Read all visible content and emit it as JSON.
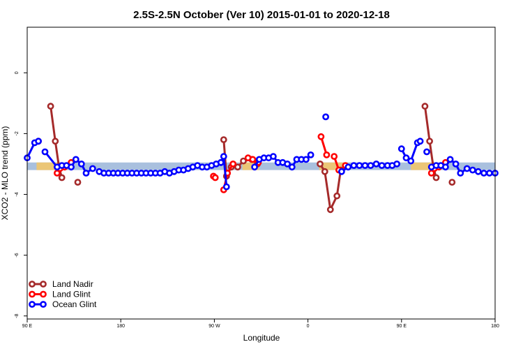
{
  "chart_data": {
    "type": "line",
    "title": "2.5S-2.5N October (Ver 10)   2015-01-01 to 2020-12-18",
    "xlabel": "Longitude",
    "ylabel": "XCO2 - MLO trend (ppm)",
    "xlim": [
      0,
      500
    ],
    "ylim": [
      -8.1,
      1.5
    ],
    "x_ticks": [
      {
        "value": 0,
        "label": "90 E"
      },
      {
        "value": 100,
        "label": "180"
      },
      {
        "value": 200,
        "label": "90 W"
      },
      {
        "value": 300,
        "label": "0"
      },
      {
        "value": 400,
        "label": "90 E"
      },
      {
        "value": 500,
        "label": "180"
      }
    ],
    "y_ticks": [
      {
        "value": 0,
        "label": "0"
      },
      {
        "value": -2,
        "label": "-2"
      },
      {
        "value": -4,
        "label": "-4"
      },
      {
        "value": -6,
        "label": "-6"
      },
      {
        "value": -8,
        "label": "-8"
      }
    ],
    "band": {
      "y_low": -3.2,
      "y_high": -2.95,
      "color": "#a9c0de"
    },
    "land_bands": [
      [
        10,
        35
      ],
      [
        230,
        248
      ],
      [
        312,
        340
      ],
      [
        410,
        435
      ]
    ],
    "land_band_color": "#f2c76a",
    "legend_position": "bottom-left",
    "series": [
      {
        "name": "Land Nadir",
        "color": "#a52a2a",
        "segments": [
          [
            [
              12,
              -2.25
            ]
          ],
          [
            [
              25,
              -1.1
            ],
            [
              30,
              -2.25
            ],
            [
              34,
              -3.1
            ],
            [
              37,
              -3.45
            ]
          ],
          [
            [
              54,
              -3.6
            ]
          ],
          [
            [
              210,
              -2.2
            ],
            [
              213,
              -3.4
            ],
            [
              218,
              -3.1
            ],
            [
              225,
              -3.1
            ],
            [
              231,
              -2.9
            ],
            [
              240,
              -2.85
            ],
            [
              246,
              -3.0
            ]
          ],
          [
            [
              313,
              -3.0
            ],
            [
              318,
              -3.25
            ],
            [
              324,
              -4.5
            ],
            [
              331,
              -4.05
            ],
            [
              335,
              -3.2
            ]
          ],
          [
            [
              425,
              -1.1
            ],
            [
              430,
              -2.25
            ],
            [
              434,
              -3.1
            ],
            [
              437,
              -3.45
            ]
          ],
          [
            [
              454,
              -3.6
            ]
          ]
        ]
      },
      {
        "name": "Land Glint",
        "color": "#ff0000",
        "segments": [
          [
            [
              32,
              -3.3
            ],
            [
              35,
              -3.15
            ],
            [
              40,
              -3.1
            ],
            [
              47,
              -2.95
            ]
          ],
          [
            [
              199,
              -3.4
            ],
            [
              201,
              -3.45
            ]
          ],
          [
            [
              210,
              -3.85
            ],
            [
              214,
              -3.3
            ],
            [
              220,
              -3.0
            ]
          ],
          [
            [
              236,
              -2.8
            ],
            [
              241,
              -2.85
            ],
            [
              247,
              -2.95
            ]
          ],
          [
            [
              314,
              -2.1
            ],
            [
              320,
              -2.7
            ]
          ],
          [
            [
              340,
              -3.05
            ]
          ],
          [
            [
              328,
              -2.75
            ],
            [
              333,
              -3.2
            ]
          ],
          [
            [
              432,
              -3.3
            ],
            [
              435,
              -3.15
            ],
            [
              440,
              -3.1
            ],
            [
              447,
              -2.95
            ]
          ]
        ]
      },
      {
        "name": "Ocean Glint",
        "color": "#0000ff",
        "segments": [
          [
            [
              0,
              -2.8
            ],
            [
              8,
              -2.3
            ],
            [
              12,
              -2.25
            ]
          ],
          [
            [
              19,
              -2.6
            ],
            [
              32,
              -3.1
            ],
            [
              37,
              -3.05
            ],
            [
              42,
              -3.05
            ],
            [
              47,
              -3.1
            ],
            [
              52,
              -2.85
            ],
            [
              58,
              -3.0
            ],
            [
              63,
              -3.3
            ],
            [
              70,
              -3.15
            ]
          ],
          [
            [
              77,
              -3.25
            ],
            [
              82,
              -3.3
            ],
            [
              87,
              -3.3
            ],
            [
              92,
              -3.3
            ],
            [
              97,
              -3.3
            ],
            [
              102,
              -3.3
            ],
            [
              107,
              -3.3
            ],
            [
              112,
              -3.3
            ],
            [
              117,
              -3.3
            ],
            [
              122,
              -3.3
            ],
            [
              127,
              -3.3
            ],
            [
              132,
              -3.3
            ],
            [
              137,
              -3.3
            ],
            [
              142,
              -3.3
            ],
            [
              147,
              -3.25
            ],
            [
              152,
              -3.3
            ],
            [
              157,
              -3.25
            ],
            [
              162,
              -3.2
            ],
            [
              167,
              -3.2
            ],
            [
              172,
              -3.15
            ],
            [
              177,
              -3.1
            ],
            [
              182,
              -3.05
            ],
            [
              187,
              -3.1
            ],
            [
              192,
              -3.1
            ],
            [
              197,
              -3.05
            ],
            [
              202,
              -3.0
            ],
            [
              207,
              -2.95
            ]
          ],
          [
            [
              207,
              -2.95
            ],
            [
              210,
              -2.75
            ],
            [
              213,
              -3.75
            ]
          ],
          [
            [
              243,
              -3.1
            ],
            [
              248,
              -2.85
            ],
            [
              253,
              -2.8
            ],
            [
              258,
              -2.8
            ],
            [
              263,
              -2.75
            ],
            [
              268,
              -2.95
            ],
            [
              273,
              -2.95
            ],
            [
              278,
              -3.0
            ],
            [
              283,
              -3.1
            ],
            [
              288,
              -2.85
            ],
            [
              293,
              -2.85
            ],
            [
              298,
              -2.85
            ],
            [
              303,
              -2.7
            ]
          ],
          [
            [
              319,
              -1.45
            ]
          ],
          [
            [
              336,
              -3.25
            ],
            [
              343,
              -3.1
            ],
            [
              349,
              -3.05
            ],
            [
              355,
              -3.05
            ],
            [
              361,
              -3.05
            ],
            [
              367,
              -3.05
            ],
            [
              373,
              -3.0
            ],
            [
              379,
              -3.05
            ],
            [
              385,
              -3.05
            ],
            [
              390,
              -3.05
            ],
            [
              395,
              -3.0
            ]
          ],
          [
            [
              400,
              -2.5
            ],
            [
              405,
              -2.8
            ],
            [
              410,
              -2.9
            ],
            [
              417,
              -2.3
            ],
            [
              420,
              -2.25
            ]
          ],
          [
            [
              427,
              -2.6
            ]
          ],
          [
            [
              432,
              -3.1
            ],
            [
              437,
              -3.05
            ],
            [
              442,
              -3.05
            ],
            [
              447,
              -3.1
            ],
            [
              452,
              -2.85
            ],
            [
              458,
              -3.0
            ],
            [
              463,
              -3.3
            ],
            [
              470,
              -3.15
            ],
            [
              476,
              -3.2
            ],
            [
              482,
              -3.25
            ],
            [
              488,
              -3.3
            ],
            [
              494,
              -3.3
            ],
            [
              500,
              -3.3
            ]
          ]
        ]
      }
    ]
  }
}
